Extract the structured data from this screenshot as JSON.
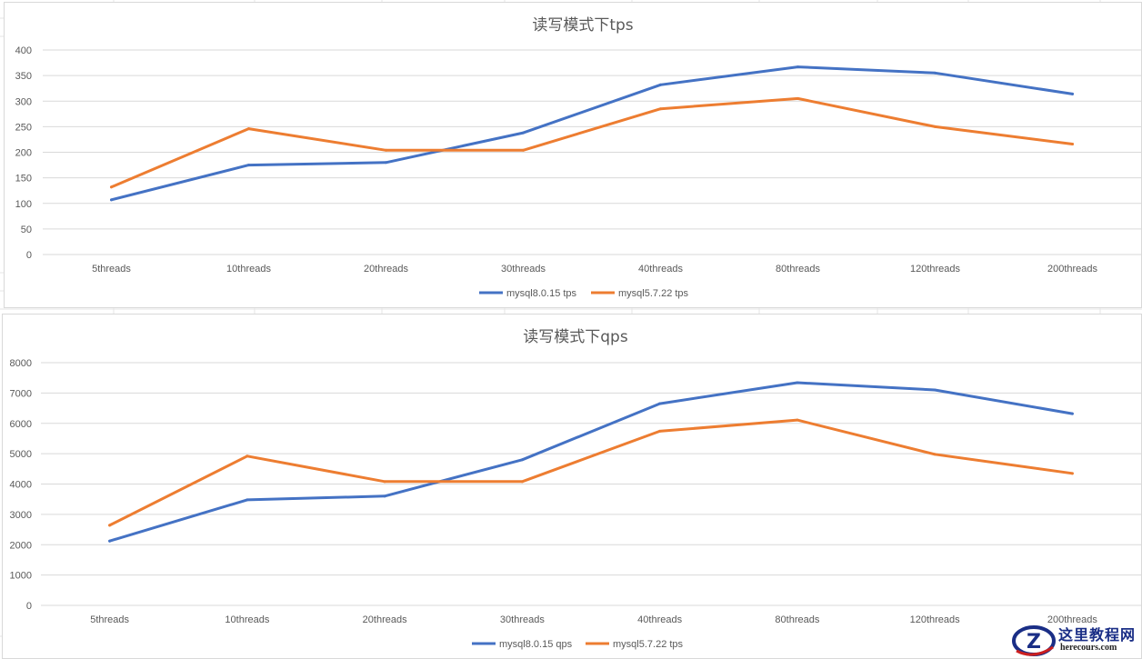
{
  "colors": {
    "series_new": "#4472c4",
    "series_old": "#ed7d31",
    "grid": "#d9d9d9",
    "text": "#595959",
    "watermark_primary": "#1a2e86",
    "watermark_accent": "#cc1f1f"
  },
  "chart_data": [
    {
      "type": "line",
      "title": "读写模式下tps",
      "categories": [
        "5threads",
        "10threads",
        "20threads",
        "30threads",
        "40threads",
        "80threads",
        "120threads",
        "200threads"
      ],
      "ylim": [
        0,
        400
      ],
      "yticks": [
        0,
        50,
        100,
        150,
        200,
        250,
        300,
        350,
        400
      ],
      "grid": true,
      "legend_position": "bottom",
      "xlabel": "",
      "ylabel": "",
      "series": [
        {
          "name": "mysql8.0.15 tps",
          "color_key": "series_new",
          "values": [
            107,
            175,
            180,
            238,
            332,
            367,
            355,
            314
          ]
        },
        {
          "name": "mysql5.7.22 tps",
          "color_key": "series_old",
          "values": [
            132,
            246,
            204,
            204,
            285,
            305,
            250,
            216
          ]
        }
      ]
    },
    {
      "type": "line",
      "title": "读写模式下qps",
      "categories": [
        "5threads",
        "10threads",
        "20threads",
        "30threads",
        "40threads",
        "80threads",
        "120threads",
        "200threads"
      ],
      "ylim": [
        0,
        8000
      ],
      "yticks": [
        0,
        1000,
        2000,
        3000,
        4000,
        5000,
        6000,
        7000,
        8000
      ],
      "grid": true,
      "legend_position": "bottom",
      "xlabel": "",
      "ylabel": "",
      "series": [
        {
          "name": "mysql8.0.15 qps",
          "color_key": "series_new",
          "values": [
            2120,
            3480,
            3600,
            4800,
            6650,
            7340,
            7100,
            6320
          ]
        },
        {
          "name": "mysql5.7.22 tps",
          "color_key": "series_old",
          "values": [
            2640,
            4920,
            4080,
            4080,
            5740,
            6110,
            4980,
            4350
          ]
        }
      ]
    }
  ],
  "watermark": {
    "title": "这里教程网",
    "url": "herecours.com",
    "badge_letter": "Z"
  }
}
